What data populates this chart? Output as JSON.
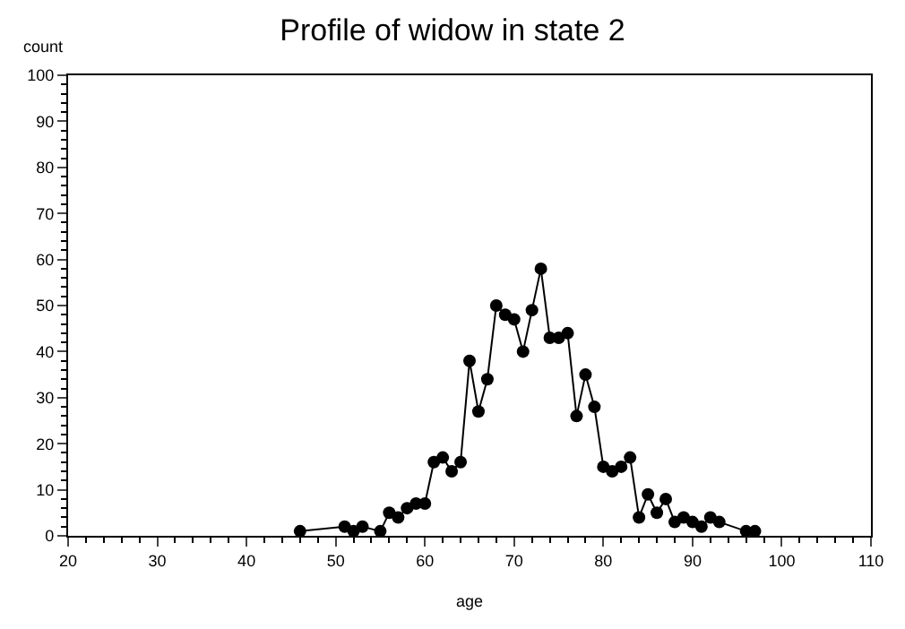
{
  "chart_data": {
    "type": "line",
    "title": "Profile of widow in state 2",
    "xlabel": "age",
    "ylabel": "count",
    "x": [
      46,
      51,
      52,
      53,
      55,
      56,
      57,
      58,
      59,
      60,
      61,
      62,
      63,
      64,
      65,
      66,
      67,
      68,
      69,
      70,
      71,
      72,
      73,
      74,
      75,
      76,
      77,
      78,
      79,
      80,
      81,
      82,
      83,
      84,
      85,
      86,
      87,
      88,
      89,
      90,
      91,
      92,
      93,
      96,
      97
    ],
    "series": [
      {
        "color": "#000000",
        "values": [
          1,
          2,
          1,
          2,
          1,
          5,
          4,
          6,
          7,
          7,
          16,
          17,
          14,
          16,
          38,
          27,
          34,
          50,
          48,
          47,
          40,
          49,
          58,
          43,
          43,
          44,
          26,
          35,
          28,
          15,
          14,
          15,
          17,
          4,
          9,
          5,
          8,
          3,
          4,
          3,
          2,
          4,
          3,
          1,
          1
        ]
      }
    ],
    "xlim": [
      20,
      110
    ],
    "xticks": [
      20,
      30,
      40,
      50,
      60,
      70,
      80,
      90,
      100,
      110
    ],
    "ylim": [
      0,
      100
    ],
    "yticks": [
      0,
      10,
      20,
      30,
      40,
      50,
      60,
      70,
      80,
      90,
      100
    ],
    "legend": false,
    "marker": "circle",
    "line_style": "solid"
  }
}
